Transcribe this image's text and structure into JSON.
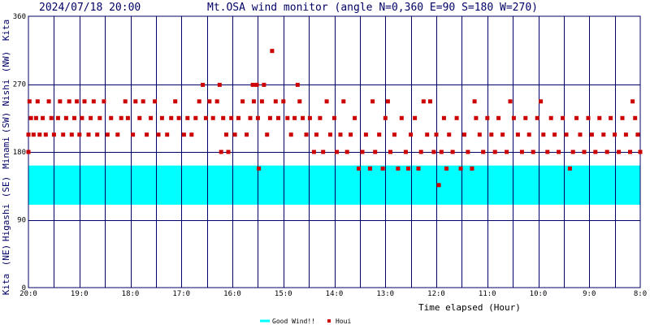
{
  "header": {
    "timestamp": "2024/07/18 20:00",
    "title": "Mt.OSA wind monitor (angle N=0,360 E=90 S=180 W=270)"
  },
  "side_labels": {
    "top": "Kita",
    "nw": "(NW)",
    "nishi": "Nishi",
    "sw": "(SW)",
    "minami": "Minami",
    "se": "(SE)",
    "higashi": "Higashi",
    "ne": "(NE)",
    "bottom": "Kita"
  },
  "legend": {
    "good_wind": "Good Wind!!",
    "houi": "Houi",
    "good_color": "#00ffff",
    "houi_color": "#cc0000"
  },
  "chart_data": {
    "type": "scatter",
    "title": "Mt.OSA wind monitor (angle N=0,360 E=90 S=180 W=270)",
    "xlabel": "Time elapsed (Hour)",
    "ylabel": "",
    "x_ticks": [
      "20:0",
      "19:0",
      "18:0",
      "17:0",
      "16:0",
      "15:0",
      "14:0",
      "13:0",
      "12:0",
      "11:0",
      "10:0",
      "9:0",
      "8:0"
    ],
    "y_ticks": [
      0,
      90,
      180,
      270,
      360
    ],
    "ylim": [
      0,
      360
    ],
    "xlim_hours_elapsed": [
      0,
      12
    ],
    "grid": true,
    "good_wind_band": [
      110,
      162
    ],
    "series": [
      {
        "name": "Houi",
        "color": "#cc0000",
        "points": [
          [
            0.0,
            180
          ],
          [
            0.0,
            203
          ],
          [
            0.02,
            247
          ],
          [
            0.05,
            225
          ],
          [
            0.1,
            203
          ],
          [
            0.15,
            225
          ],
          [
            0.18,
            247
          ],
          [
            0.22,
            203
          ],
          [
            0.28,
            225
          ],
          [
            0.34,
            203
          ],
          [
            0.4,
            247
          ],
          [
            0.45,
            225
          ],
          [
            0.5,
            203
          ],
          [
            0.58,
            225
          ],
          [
            0.62,
            247
          ],
          [
            0.68,
            203
          ],
          [
            0.74,
            225
          ],
          [
            0.8,
            247
          ],
          [
            0.85,
            203
          ],
          [
            0.9,
            225
          ],
          [
            0.95,
            247
          ],
          [
            1.0,
            203
          ],
          [
            1.05,
            225
          ],
          [
            1.1,
            247
          ],
          [
            1.18,
            203
          ],
          [
            1.22,
            225
          ],
          [
            1.28,
            247
          ],
          [
            1.35,
            203
          ],
          [
            1.4,
            225
          ],
          [
            1.48,
            247
          ],
          [
            1.55,
            203
          ],
          [
            1.62,
            225
          ],
          [
            1.75,
            203
          ],
          [
            1.82,
            225
          ],
          [
            1.9,
            247
          ],
          [
            1.95,
            225
          ],
          [
            2.05,
            203
          ],
          [
            2.1,
            247
          ],
          [
            2.18,
            225
          ],
          [
            2.25,
            247
          ],
          [
            2.32,
            203
          ],
          [
            2.4,
            225
          ],
          [
            2.48,
            247
          ],
          [
            2.55,
            203
          ],
          [
            2.62,
            225
          ],
          [
            2.72,
            203
          ],
          [
            2.8,
            225
          ],
          [
            2.88,
            247
          ],
          [
            2.95,
            225
          ],
          [
            3.05,
            203
          ],
          [
            3.12,
            225
          ],
          [
            3.2,
            203
          ],
          [
            3.28,
            225
          ],
          [
            3.35,
            247
          ],
          [
            3.42,
            269
          ],
          [
            3.48,
            225
          ],
          [
            3.55,
            247
          ],
          [
            3.62,
            225
          ],
          [
            3.7,
            247
          ],
          [
            3.75,
            269
          ],
          [
            3.78,
            180
          ],
          [
            3.82,
            225
          ],
          [
            3.88,
            203
          ],
          [
            3.92,
            180
          ],
          [
            3.98,
            225
          ],
          [
            4.05,
            203
          ],
          [
            4.12,
            225
          ],
          [
            4.2,
            247
          ],
          [
            4.28,
            203
          ],
          [
            4.35,
            225
          ],
          [
            4.42,
            247
          ],
          [
            4.4,
            269
          ],
          [
            4.48,
            269
          ],
          [
            4.5,
            225
          ],
          [
            4.52,
            158
          ],
          [
            4.58,
            247
          ],
          [
            4.62,
            269
          ],
          [
            4.68,
            203
          ],
          [
            4.74,
            225
          ],
          [
            4.78,
            314
          ],
          [
            4.85,
            247
          ],
          [
            4.9,
            225
          ],
          [
            5.0,
            247
          ],
          [
            5.08,
            225
          ],
          [
            5.15,
            203
          ],
          [
            5.22,
            225
          ],
          [
            5.28,
            269
          ],
          [
            5.32,
            247
          ],
          [
            5.38,
            225
          ],
          [
            5.45,
            203
          ],
          [
            5.52,
            225
          ],
          [
            5.6,
            180
          ],
          [
            5.65,
            203
          ],
          [
            5.72,
            225
          ],
          [
            5.78,
            180
          ],
          [
            5.85,
            247
          ],
          [
            5.92,
            203
          ],
          [
            6.0,
            225
          ],
          [
            6.05,
            180
          ],
          [
            6.12,
            203
          ],
          [
            6.18,
            247
          ],
          [
            6.25,
            180
          ],
          [
            6.32,
            203
          ],
          [
            6.4,
            225
          ],
          [
            6.48,
            158
          ],
          [
            6.55,
            180
          ],
          [
            6.62,
            203
          ],
          [
            6.7,
            158
          ],
          [
            6.75,
            247
          ],
          [
            6.8,
            180
          ],
          [
            6.88,
            203
          ],
          [
            6.95,
            158
          ],
          [
            7.0,
            225
          ],
          [
            7.05,
            247
          ],
          [
            7.1,
            180
          ],
          [
            7.18,
            203
          ],
          [
            7.25,
            158
          ],
          [
            7.32,
            225
          ],
          [
            7.4,
            180
          ],
          [
            7.45,
            158
          ],
          [
            7.5,
            203
          ],
          [
            7.58,
            225
          ],
          [
            7.65,
            158
          ],
          [
            7.7,
            180
          ],
          [
            7.75,
            247
          ],
          [
            7.82,
            203
          ],
          [
            7.88,
            247
          ],
          [
            7.95,
            180
          ],
          [
            8.0,
            203
          ],
          [
            8.05,
            136
          ],
          [
            8.1,
            180
          ],
          [
            8.15,
            225
          ],
          [
            8.2,
            158
          ],
          [
            8.25,
            203
          ],
          [
            8.32,
            180
          ],
          [
            8.4,
            225
          ],
          [
            8.48,
            158
          ],
          [
            8.55,
            203
          ],
          [
            8.62,
            180
          ],
          [
            8.7,
            158
          ],
          [
            8.75,
            247
          ],
          [
            8.78,
            225
          ],
          [
            8.85,
            203
          ],
          [
            8.92,
            180
          ],
          [
            9.0,
            225
          ],
          [
            9.08,
            203
          ],
          [
            9.15,
            180
          ],
          [
            9.22,
            225
          ],
          [
            9.3,
            203
          ],
          [
            9.38,
            180
          ],
          [
            9.45,
            247
          ],
          [
            9.52,
            225
          ],
          [
            9.6,
            203
          ],
          [
            9.68,
            180
          ],
          [
            9.75,
            225
          ],
          [
            9.82,
            203
          ],
          [
            9.9,
            180
          ],
          [
            9.98,
            225
          ],
          [
            10.05,
            247
          ],
          [
            10.1,
            203
          ],
          [
            10.18,
            180
          ],
          [
            10.25,
            225
          ],
          [
            10.32,
            203
          ],
          [
            10.4,
            180
          ],
          [
            10.48,
            225
          ],
          [
            10.55,
            203
          ],
          [
            10.62,
            158
          ],
          [
            10.68,
            180
          ],
          [
            10.75,
            225
          ],
          [
            10.82,
            203
          ],
          [
            10.9,
            180
          ],
          [
            10.98,
            225
          ],
          [
            11.05,
            203
          ],
          [
            11.12,
            180
          ],
          [
            11.2,
            225
          ],
          [
            11.28,
            203
          ],
          [
            11.35,
            180
          ],
          [
            11.42,
            225
          ],
          [
            11.5,
            203
          ],
          [
            11.58,
            180
          ],
          [
            11.65,
            225
          ],
          [
            11.72,
            203
          ],
          [
            11.8,
            180
          ],
          [
            11.85,
            247
          ],
          [
            11.9,
            225
          ],
          [
            11.95,
            203
          ],
          [
            12.0,
            180
          ]
        ]
      }
    ]
  }
}
